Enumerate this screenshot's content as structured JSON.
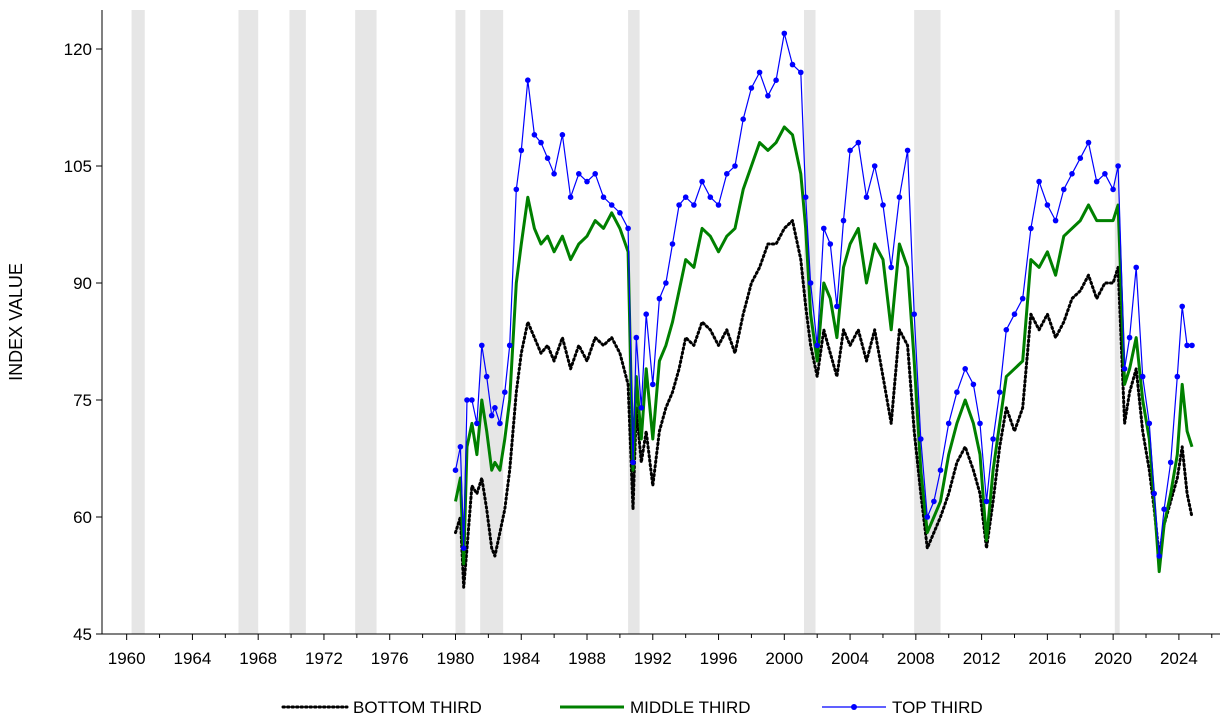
{
  "chart_data": {
    "type": "line",
    "title": "",
    "xlabel": "",
    "ylabel": "INDEX VALUE",
    "ylim": [
      45,
      125
    ],
    "xlim": [
      1958.5,
      2026.5
    ],
    "yticks": [
      45,
      60,
      75,
      90,
      105,
      120
    ],
    "xticks": [
      1960,
      1964,
      1968,
      1972,
      1976,
      1980,
      1984,
      1988,
      1992,
      1996,
      2000,
      2004,
      2008,
      2012,
      2016,
      2020,
      2024
    ],
    "grid": false,
    "legend_position": "bottom",
    "recessions": [
      {
        "start": 1960.3,
        "end": 1961.1
      },
      {
        "start": 1969.9,
        "end": 1970.9
      },
      {
        "start": 1973.9,
        "end": 1975.2
      },
      {
        "start": 1980.0,
        "end": 1980.6
      },
      {
        "start": 1981.5,
        "end": 1982.9
      },
      {
        "start": 1990.5,
        "end": 1991.2
      },
      {
        "start": 2001.2,
        "end": 2001.9
      },
      {
        "start": 2007.9,
        "end": 2009.5
      },
      {
        "start": 2020.1,
        "end": 2020.4
      },
      {
        "start": 1966.8,
        "end": 1968.0
      }
    ],
    "series": [
      {
        "name": "BOTTOM THIRD",
        "color": "#000000",
        "style": "dotted",
        "x": [
          1980.0,
          1980.3,
          1980.5,
          1980.7,
          1981.0,
          1981.3,
          1981.6,
          1981.9,
          1982.2,
          1982.4,
          1982.7,
          1983.0,
          1983.3,
          1983.7,
          1984.0,
          1984.4,
          1984.8,
          1985.2,
          1985.6,
          1986.0,
          1986.5,
          1987.0,
          1987.5,
          1988.0,
          1988.5,
          1989.0,
          1989.5,
          1990.0,
          1990.5,
          1990.8,
          1991.0,
          1991.3,
          1991.6,
          1992.0,
          1992.4,
          1992.8,
          1993.2,
          1993.6,
          1994.0,
          1994.5,
          1995.0,
          1995.5,
          1996.0,
          1996.5,
          1997.0,
          1997.5,
          1998.0,
          1998.5,
          1999.0,
          1999.5,
          2000.0,
          2000.5,
          2001.0,
          2001.3,
          2001.6,
          2002.0,
          2002.4,
          2002.8,
          2003.2,
          2003.6,
          2004.0,
          2004.5,
          2005.0,
          2005.5,
          2006.0,
          2006.5,
          2007.0,
          2007.5,
          2007.9,
          2008.3,
          2008.7,
          2009.1,
          2009.5,
          2010.0,
          2010.5,
          2011.0,
          2011.5,
          2011.9,
          2012.3,
          2012.7,
          2013.1,
          2013.5,
          2014.0,
          2014.5,
          2015.0,
          2015.5,
          2016.0,
          2016.5,
          2017.0,
          2017.5,
          2018.0,
          2018.5,
          2019.0,
          2019.5,
          2020.0,
          2020.3,
          2020.7,
          2021.0,
          2021.4,
          2021.8,
          2022.2,
          2022.5,
          2022.8,
          2023.1,
          2023.5,
          2023.9,
          2024.2,
          2024.5,
          2024.8
        ],
        "values": [
          58,
          60,
          51,
          56,
          64,
          63,
          65,
          61,
          56,
          55,
          58,
          61,
          66,
          76,
          81,
          85,
          83,
          81,
          82,
          80,
          83,
          79,
          82,
          80,
          83,
          82,
          83,
          81,
          77,
          61,
          74,
          67,
          71,
          64,
          71,
          74,
          76,
          79,
          83,
          82,
          85,
          84,
          82,
          84,
          81,
          86,
          90,
          92,
          95,
          95,
          97,
          98,
          93,
          87,
          82,
          78,
          84,
          81,
          78,
          84,
          82,
          84,
          80,
          84,
          78,
          72,
          84,
          82,
          71,
          63,
          56,
          58,
          60,
          63,
          67,
          69,
          66,
          63,
          56,
          62,
          69,
          74,
          71,
          74,
          86,
          84,
          86,
          83,
          85,
          88,
          89,
          91,
          88,
          90,
          90,
          92,
          72,
          76,
          79,
          71,
          66,
          61,
          55,
          59,
          62,
          65,
          69,
          63,
          60
        ]
      },
      {
        "name": "MIDDLE THIRD",
        "color": "#008000",
        "style": "solid",
        "x": [
          1980.0,
          1980.3,
          1980.5,
          1980.7,
          1981.0,
          1981.3,
          1981.6,
          1981.9,
          1982.2,
          1982.4,
          1982.7,
          1983.0,
          1983.3,
          1983.7,
          1984.0,
          1984.4,
          1984.8,
          1985.2,
          1985.6,
          1986.0,
          1986.5,
          1987.0,
          1987.5,
          1988.0,
          1988.5,
          1989.0,
          1989.5,
          1990.0,
          1990.5,
          1990.8,
          1991.0,
          1991.3,
          1991.6,
          1992.0,
          1992.4,
          1992.8,
          1993.2,
          1993.6,
          1994.0,
          1994.5,
          1995.0,
          1995.5,
          1996.0,
          1996.5,
          1997.0,
          1997.5,
          1998.0,
          1998.5,
          1999.0,
          1999.5,
          2000.0,
          2000.5,
          2001.0,
          2001.3,
          2001.6,
          2002.0,
          2002.4,
          2002.8,
          2003.2,
          2003.6,
          2004.0,
          2004.5,
          2005.0,
          2005.5,
          2006.0,
          2006.5,
          2007.0,
          2007.5,
          2007.9,
          2008.3,
          2008.7,
          2009.1,
          2009.5,
          2010.0,
          2010.5,
          2011.0,
          2011.5,
          2011.9,
          2012.3,
          2012.7,
          2013.1,
          2013.5,
          2014.0,
          2014.5,
          2015.0,
          2015.5,
          2016.0,
          2016.5,
          2017.0,
          2017.5,
          2018.0,
          2018.5,
          2019.0,
          2019.5,
          2020.0,
          2020.3,
          2020.7,
          2021.0,
          2021.4,
          2021.8,
          2022.2,
          2022.5,
          2022.8,
          2023.1,
          2023.5,
          2023.9,
          2024.2,
          2024.5,
          2024.8
        ],
        "values": [
          62,
          65,
          54,
          69,
          72,
          68,
          75,
          71,
          66,
          67,
          66,
          70,
          75,
          90,
          95,
          101,
          97,
          95,
          96,
          94,
          96,
          93,
          95,
          96,
          98,
          97,
          99,
          97,
          94,
          66,
          78,
          70,
          79,
          70,
          80,
          82,
          85,
          89,
          93,
          92,
          97,
          96,
          94,
          96,
          97,
          102,
          105,
          108,
          107,
          108,
          110,
          109,
          104,
          97,
          86,
          80,
          90,
          88,
          83,
          92,
          95,
          97,
          90,
          95,
          93,
          84,
          95,
          92,
          80,
          66,
          58,
          60,
          62,
          68,
          72,
          75,
          72,
          68,
          57,
          66,
          72,
          78,
          79,
          80,
          93,
          92,
          94,
          91,
          96,
          97,
          98,
          100,
          98,
          98,
          98,
          100,
          77,
          79,
          83,
          75,
          70,
          62,
          53,
          59,
          63,
          68,
          77,
          71,
          69
        ]
      },
      {
        "name": "TOP THIRD",
        "color": "#0000ff",
        "style": "solid-markers",
        "x": [
          1980.0,
          1980.3,
          1980.5,
          1980.7,
          1981.0,
          1981.3,
          1981.6,
          1981.9,
          1982.2,
          1982.4,
          1982.7,
          1983.0,
          1983.3,
          1983.7,
          1984.0,
          1984.4,
          1984.8,
          1985.2,
          1985.6,
          1986.0,
          1986.5,
          1987.0,
          1987.5,
          1988.0,
          1988.5,
          1989.0,
          1989.5,
          1990.0,
          1990.5,
          1990.8,
          1991.0,
          1991.3,
          1991.6,
          1992.0,
          1992.4,
          1992.8,
          1993.2,
          1993.6,
          1994.0,
          1994.5,
          1995.0,
          1995.5,
          1996.0,
          1996.5,
          1997.0,
          1997.5,
          1998.0,
          1998.5,
          1999.0,
          1999.5,
          2000.0,
          2000.5,
          2001.0,
          2001.3,
          2001.6,
          2002.0,
          2002.4,
          2002.8,
          2003.2,
          2003.6,
          2004.0,
          2004.5,
          2005.0,
          2005.5,
          2006.0,
          2006.5,
          2007.0,
          2007.5,
          2007.9,
          2008.3,
          2008.7,
          2009.1,
          2009.5,
          2010.0,
          2010.5,
          2011.0,
          2011.5,
          2011.9,
          2012.3,
          2012.7,
          2013.1,
          2013.5,
          2014.0,
          2014.5,
          2015.0,
          2015.5,
          2016.0,
          2016.5,
          2017.0,
          2017.5,
          2018.0,
          2018.5,
          2019.0,
          2019.5,
          2020.0,
          2020.3,
          2020.7,
          2021.0,
          2021.4,
          2021.8,
          2022.2,
          2022.5,
          2022.8,
          2023.1,
          2023.5,
          2023.9,
          2024.2,
          2024.5,
          2024.8
        ],
        "values": [
          66,
          69,
          56,
          75,
          75,
          72,
          82,
          78,
          73,
          74,
          72,
          76,
          82,
          102,
          107,
          116,
          109,
          108,
          106,
          104,
          109,
          101,
          104,
          103,
          104,
          101,
          100,
          99,
          97,
          67,
          83,
          74,
          86,
          77,
          88,
          90,
          95,
          100,
          101,
          100,
          103,
          101,
          100,
          104,
          105,
          111,
          115,
          117,
          114,
          116,
          122,
          118,
          117,
          101,
          90,
          82,
          97,
          95,
          87,
          98,
          107,
          108,
          101,
          105,
          100,
          92,
          101,
          107,
          86,
          70,
          60,
          62,
          66,
          72,
          76,
          79,
          77,
          72,
          62,
          70,
          76,
          84,
          86,
          88,
          97,
          103,
          100,
          98,
          102,
          104,
          106,
          108,
          103,
          104,
          102,
          105,
          79,
          83,
          92,
          78,
          72,
          63,
          55,
          61,
          67,
          78,
          87,
          82,
          82
        ]
      }
    ]
  }
}
